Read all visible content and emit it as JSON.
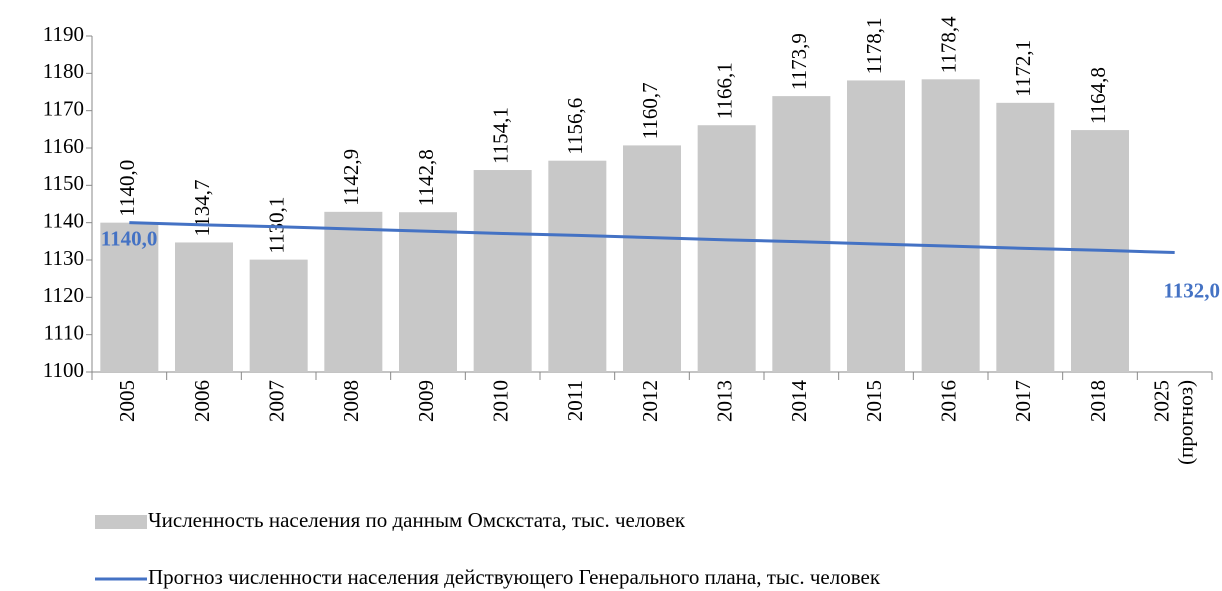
{
  "chart_data": {
    "type": "bar_line",
    "categories": [
      "2005",
      "2006",
      "2007",
      "2008",
      "2009",
      "2010",
      "2011",
      "2012",
      "2013",
      "2014",
      "2015",
      "2016",
      "2017",
      "2018",
      "2025 (прогноз)"
    ],
    "series": [
      {
        "name": "Численность населения по данным Омскстата, тыс. человек",
        "type": "bar",
        "color": "#c8c8c8",
        "values": [
          1140.0,
          1134.7,
          1130.1,
          1142.9,
          1142.8,
          1154.1,
          1156.6,
          1160.7,
          1166.1,
          1173.9,
          1178.1,
          1178.4,
          1172.1,
          1164.8,
          null
        ],
        "value_labels": [
          "1140,0",
          "1134,7",
          "1130,1",
          "1142,9",
          "1142,8",
          "1154,1",
          "1156,6",
          "1160,7",
          "1166,1",
          "1173,9",
          "1178,1",
          "1178,4",
          "1172,1",
          "1164,8",
          null
        ]
      },
      {
        "name": "Прогноз численности населения действующего Генерального плана, тыс. человек",
        "type": "line",
        "color": "#4472c4",
        "values": [
          1140.0,
          1139.4,
          1138.9,
          1138.3,
          1137.7,
          1137.1,
          1136.6,
          1136.0,
          1135.4,
          1134.9,
          1134.3,
          1133.7,
          1133.1,
          1132.6,
          1132.0
        ],
        "value_labels": [
          "1140,0",
          null,
          null,
          null,
          null,
          null,
          null,
          null,
          null,
          null,
          null,
          null,
          null,
          null,
          "1132,0"
        ]
      }
    ],
    "ylim": [
      1100,
      1190
    ],
    "yticks": [
      1100,
      1110,
      1120,
      1130,
      1140,
      1150,
      1160,
      1170,
      1180,
      1190
    ],
    "grid": false
  }
}
